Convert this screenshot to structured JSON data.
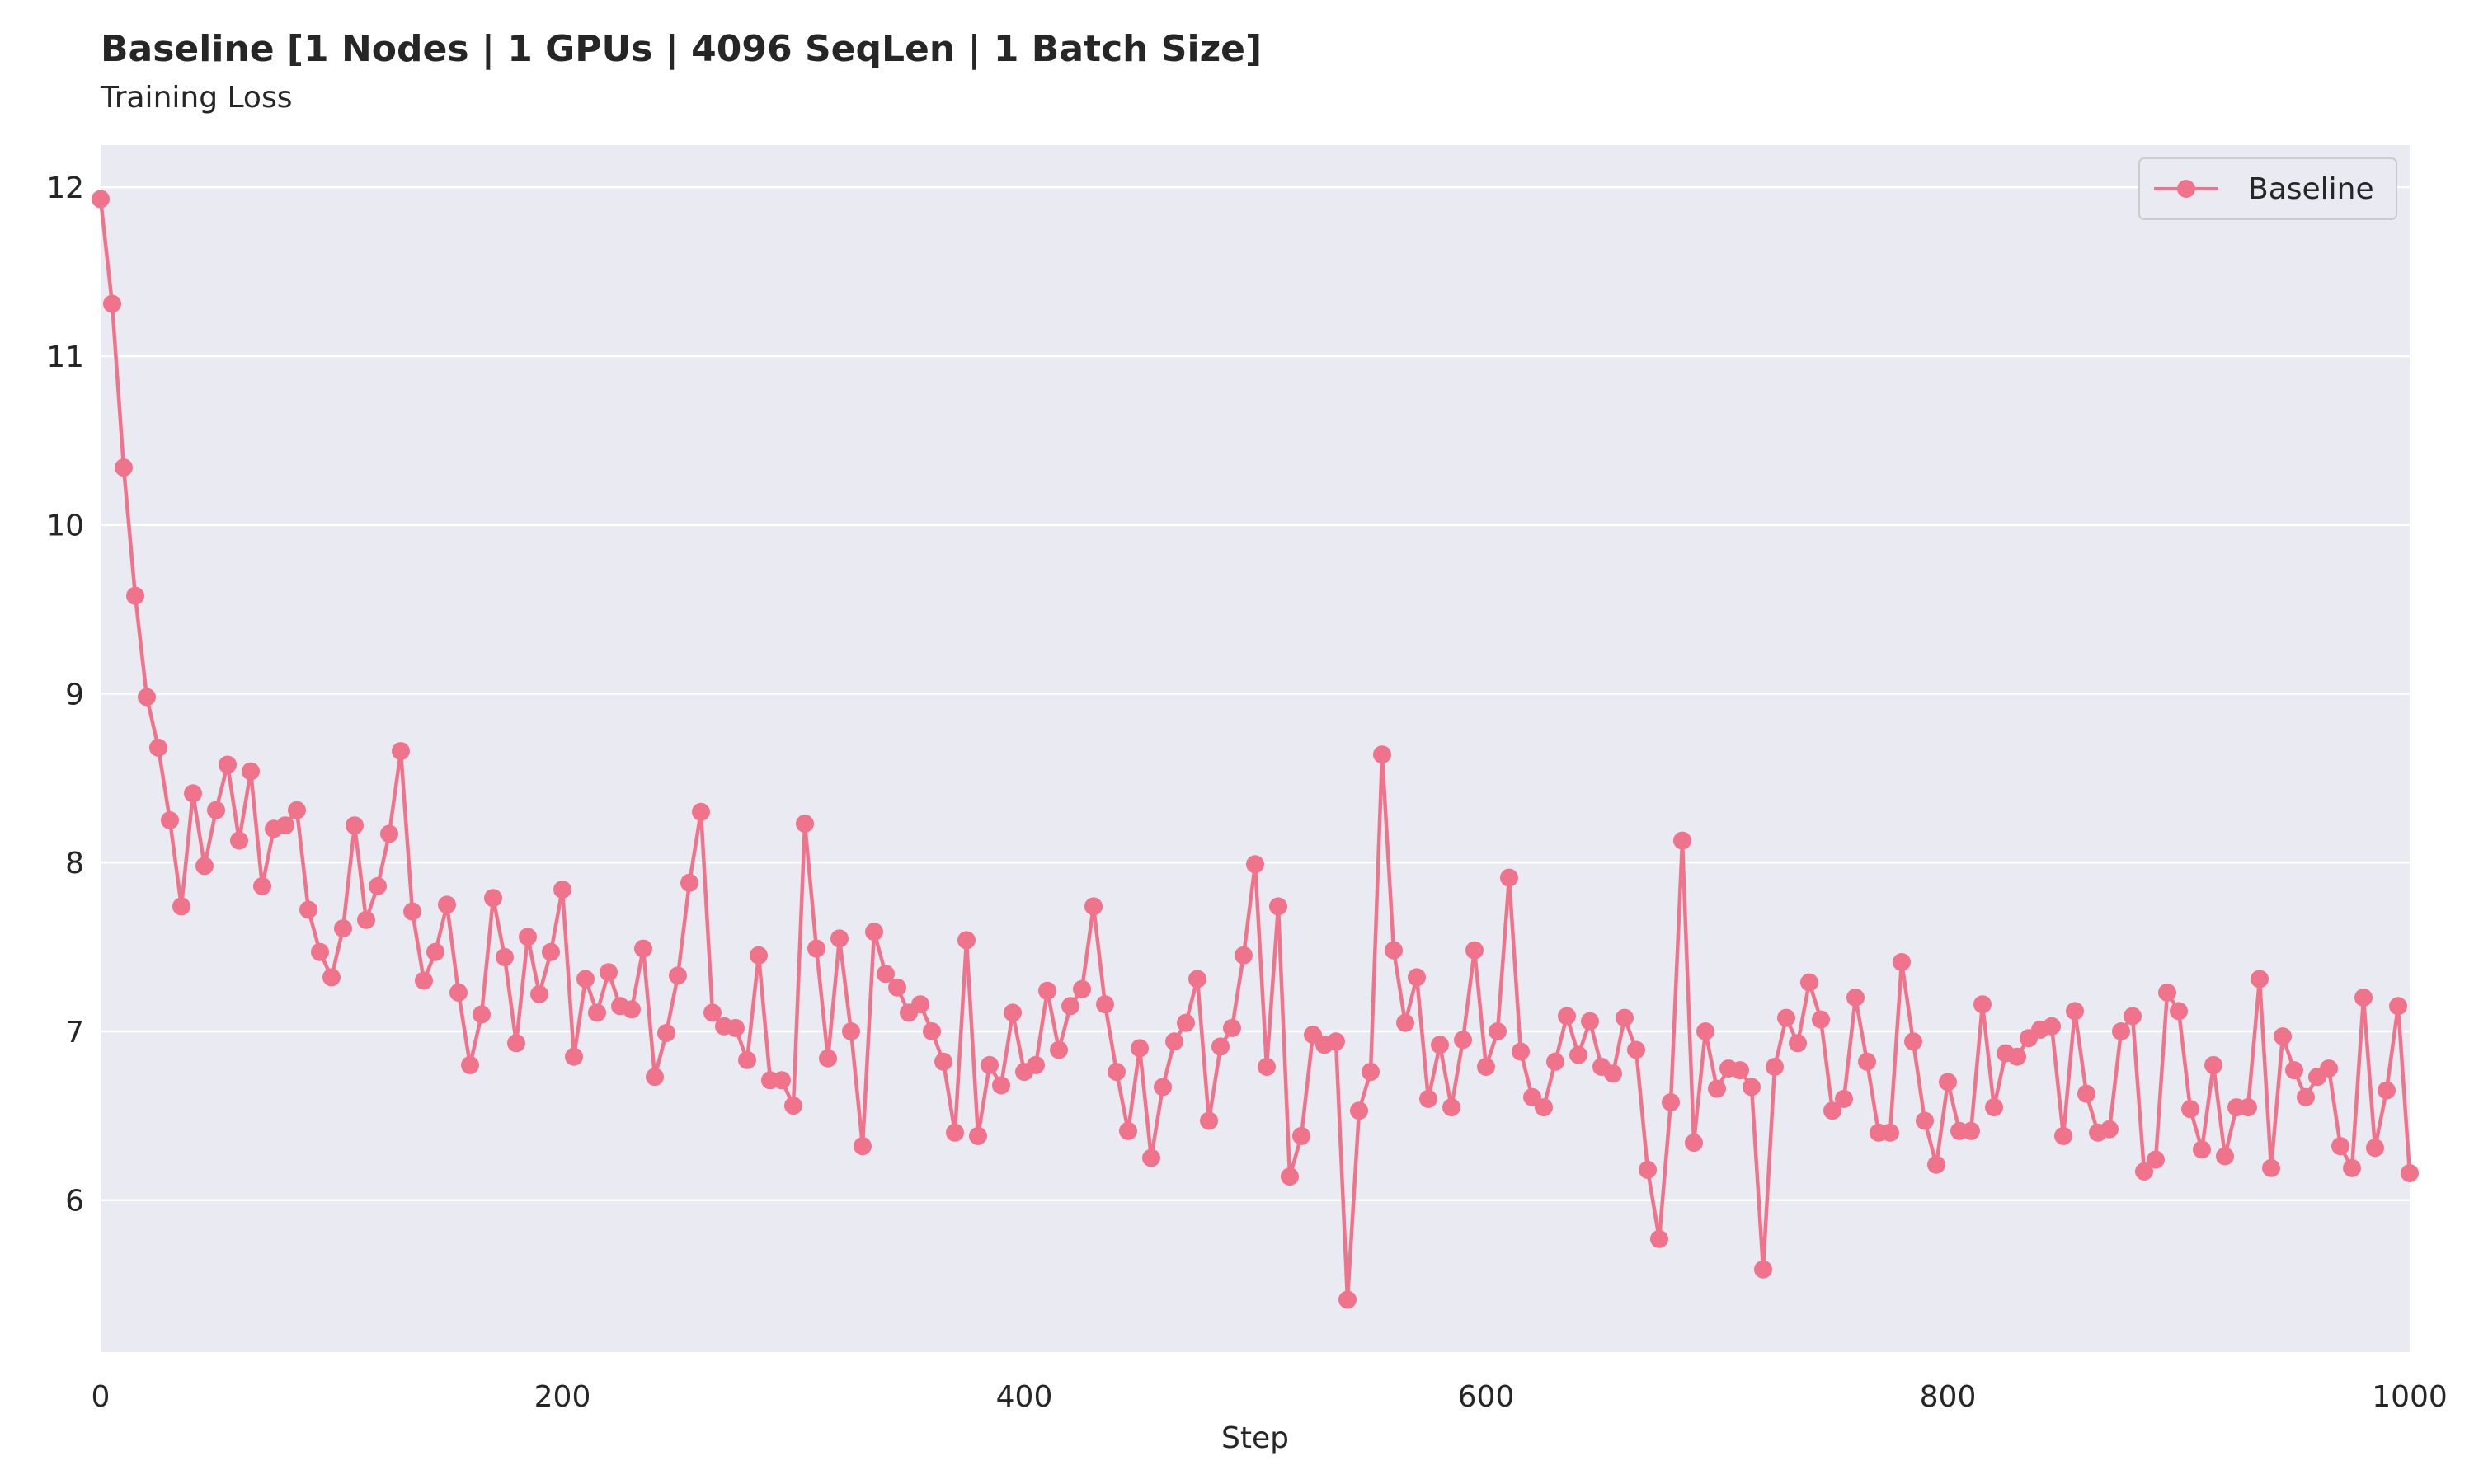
{
  "chart_data": {
    "type": "line",
    "title": "Baseline [1 Nodes | 1 GPUs | 4096 SeqLen | 1 Batch Size]",
    "subtitle": "Training Loss",
    "xlabel": "Step",
    "ylabel": "",
    "xlim": [
      0,
      1000
    ],
    "ylim": [
      5.1,
      12.25
    ],
    "xticks": [
      0,
      200,
      400,
      600,
      800,
      1000
    ],
    "yticks": [
      6,
      7,
      8,
      9,
      10,
      11,
      12
    ],
    "grid": "horizontal",
    "legend_position": "top-right",
    "colors": {
      "series": "#f0738c",
      "plot_background": "#eaeaf2",
      "grid": "#ffffff"
    },
    "series": [
      {
        "name": "Baseline",
        "marker": "circle",
        "x": [
          0,
          5,
          10,
          15,
          20,
          25,
          30,
          35,
          40,
          45,
          50,
          55,
          60,
          65,
          70,
          75,
          80,
          85,
          90,
          95,
          100,
          105,
          110,
          115,
          120,
          125,
          130,
          135,
          140,
          145,
          150,
          155,
          160,
          165,
          170,
          175,
          180,
          185,
          190,
          195,
          200,
          205,
          210,
          215,
          220,
          225,
          230,
          235,
          240,
          245,
          250,
          255,
          260,
          265,
          270,
          275,
          280,
          285,
          290,
          295,
          300,
          305,
          310,
          315,
          320,
          325,
          330,
          335,
          340,
          345,
          350,
          355,
          360,
          365,
          370,
          375,
          380,
          385,
          390,
          395,
          400,
          405,
          410,
          415,
          420,
          425,
          430,
          435,
          440,
          445,
          450,
          455,
          460,
          465,
          470,
          475,
          480,
          485,
          490,
          495,
          500,
          505,
          510,
          515,
          520,
          525,
          530,
          535,
          540,
          545,
          550,
          555,
          560,
          565,
          570,
          575,
          580,
          585,
          590,
          595,
          600,
          605,
          610,
          615,
          620,
          625,
          630,
          635,
          640,
          645,
          650,
          655,
          660,
          665,
          670,
          675,
          680,
          685,
          690,
          695,
          700,
          705,
          710,
          715,
          720,
          725,
          730,
          735,
          740,
          745,
          750,
          755,
          760,
          765,
          770,
          775,
          780,
          785,
          790,
          795,
          800,
          805,
          810,
          815,
          820,
          825,
          830,
          835,
          840,
          845,
          850,
          855,
          860,
          865,
          870,
          875,
          880,
          885,
          890,
          895,
          900,
          905,
          910,
          915,
          920,
          925,
          930,
          935,
          940,
          945,
          950,
          955,
          960,
          965,
          970,
          975,
          980,
          985,
          990,
          995,
          1000
        ],
        "y": [
          11.93,
          11.31,
          10.34,
          9.58,
          8.98,
          8.68,
          8.25,
          7.74,
          8.41,
          7.98,
          8.31,
          8.58,
          8.13,
          8.54,
          7.86,
          8.2,
          8.22,
          8.31,
          7.72,
          7.47,
          7.32,
          7.61,
          8.22,
          7.66,
          7.86,
          8.17,
          8.66,
          7.71,
          7.3,
          7.47,
          7.75,
          7.23,
          6.8,
          7.1,
          7.79,
          7.44,
          6.93,
          7.56,
          7.22,
          7.47,
          7.84,
          6.85,
          7.31,
          7.11,
          7.35,
          7.15,
          7.13,
          7.49,
          6.73,
          6.99,
          7.33,
          7.88,
          8.3,
          7.11,
          7.03,
          7.02,
          6.83,
          7.45,
          6.71,
          6.71,
          6.56,
          8.23,
          7.49,
          6.84,
          7.55,
          7.0,
          6.32,
          7.59,
          7.34,
          7.26,
          7.11,
          7.16,
          7.0,
          6.82,
          6.4,
          7.54,
          6.38,
          6.8,
          6.68,
          7.11,
          6.76,
          6.8,
          7.24,
          6.89,
          7.15,
          7.25,
          7.74,
          7.16,
          6.76,
          6.41,
          6.9,
          6.25,
          6.67,
          6.94,
          7.05,
          7.31,
          6.47,
          6.91,
          7.02,
          7.45,
          7.99,
          6.79,
          7.74,
          6.14,
          6.38,
          6.98,
          6.92,
          6.94,
          5.41,
          6.53,
          6.76,
          8.64,
          7.48,
          7.05,
          7.32,
          6.6,
          6.92,
          6.55,
          6.95,
          7.48,
          6.79,
          7.0,
          7.91,
          6.88,
          6.61,
          6.55,
          6.82,
          7.09,
          6.86,
          7.06,
          6.79,
          6.75,
          7.08,
          6.89,
          6.18,
          5.77,
          6.58,
          8.13,
          6.34,
          7.0,
          6.66,
          6.78,
          6.77,
          6.67,
          5.59,
          6.79,
          7.08,
          6.93,
          7.29,
          7.07,
          6.53,
          6.6,
          7.2,
          6.82,
          6.4,
          6.4,
          7.41,
          6.94,
          6.47,
          6.21,
          6.7,
          6.41,
          6.41,
          7.16,
          6.55,
          6.87,
          6.85,
          6.96,
          7.01,
          7.03,
          6.38,
          7.12,
          6.63,
          6.4,
          6.42,
          7.0,
          7.09,
          6.17,
          6.24,
          7.23,
          7.12,
          6.54,
          6.3,
          6.8,
          6.26,
          6.55,
          6.55,
          7.31,
          6.19,
          6.97,
          6.77,
          6.61,
          6.73,
          6.78,
          6.32,
          6.19,
          7.2,
          6.31,
          6.65,
          7.15,
          6.16
        ]
      }
    ]
  }
}
